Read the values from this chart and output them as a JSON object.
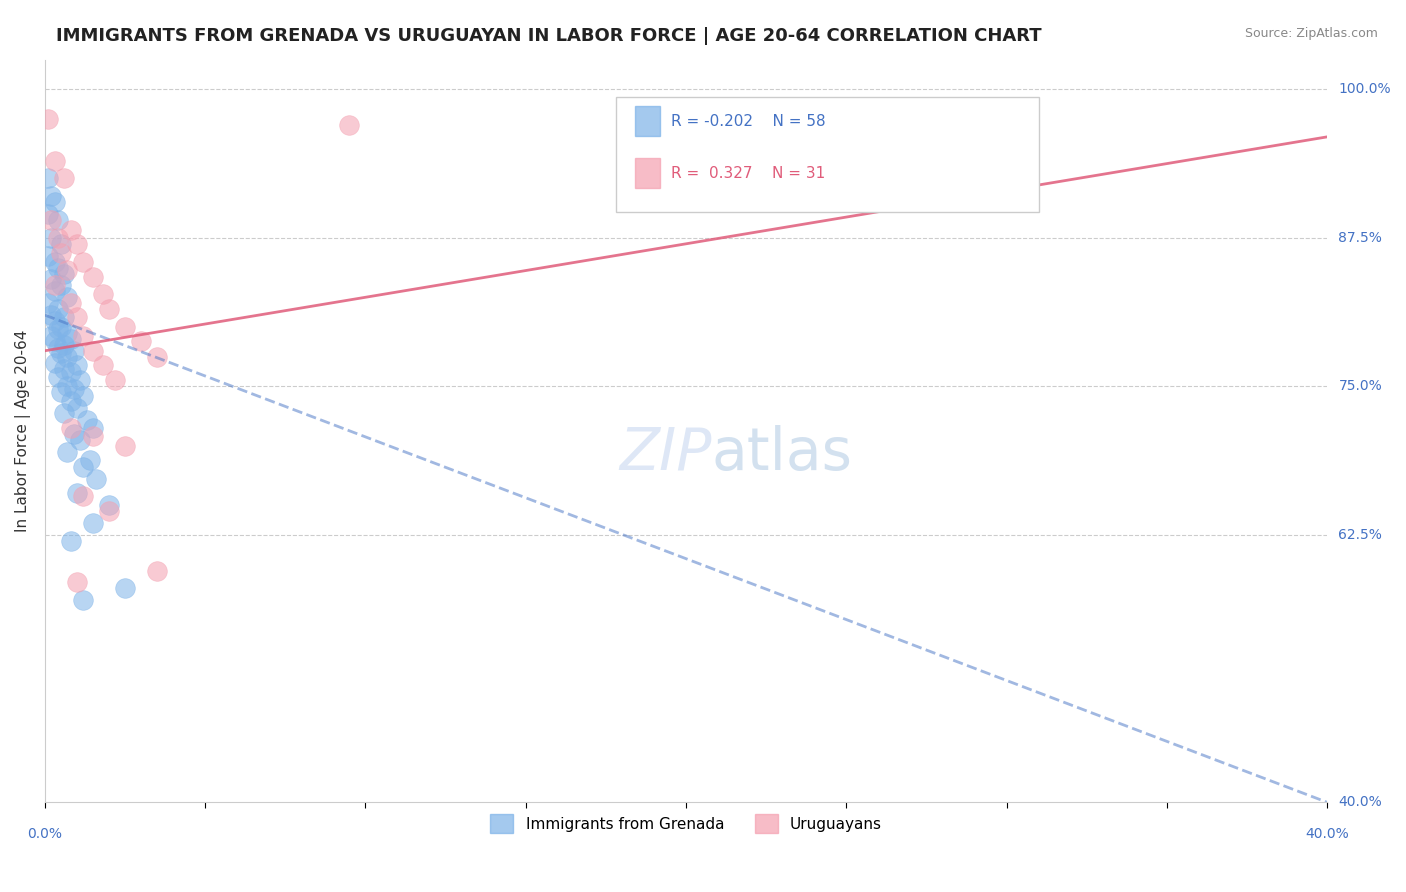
{
  "title": "IMMIGRANTS FROM GRENADA VS URUGUAYAN IN LABOR FORCE | AGE 20-64 CORRELATION CHART",
  "source": "Source: ZipAtlas.com",
  "ylabel_label": "In Labor Force | Age 20-64",
  "legend_blue_r": "R = -0.202",
  "legend_blue_n": "N = 58",
  "legend_pink_r": "R =  0.327",
  "legend_pink_n": "N = 31",
  "blue_color": "#7EB3E8",
  "pink_color": "#F4A0B0",
  "blue_line_color": "#4472C4",
  "pink_line_color": "#E05C7A",
  "blue_scatter": [
    [
      0.001,
      0.925
    ],
    [
      0.002,
      0.91
    ],
    [
      0.003,
      0.905
    ],
    [
      0.001,
      0.895
    ],
    [
      0.004,
      0.89
    ],
    [
      0.002,
      0.875
    ],
    [
      0.005,
      0.87
    ],
    [
      0.001,
      0.86
    ],
    [
      0.003,
      0.855
    ],
    [
      0.004,
      0.85
    ],
    [
      0.006,
      0.845
    ],
    [
      0.002,
      0.84
    ],
    [
      0.005,
      0.835
    ],
    [
      0.003,
      0.83
    ],
    [
      0.007,
      0.825
    ],
    [
      0.001,
      0.82
    ],
    [
      0.004,
      0.815
    ],
    [
      0.002,
      0.81
    ],
    [
      0.006,
      0.808
    ],
    [
      0.003,
      0.805
    ],
    [
      0.005,
      0.8
    ],
    [
      0.004,
      0.798
    ],
    [
      0.007,
      0.795
    ],
    [
      0.002,
      0.792
    ],
    [
      0.008,
      0.79
    ],
    [
      0.003,
      0.788
    ],
    [
      0.006,
      0.785
    ],
    [
      0.004,
      0.782
    ],
    [
      0.009,
      0.78
    ],
    [
      0.005,
      0.778
    ],
    [
      0.007,
      0.775
    ],
    [
      0.003,
      0.77
    ],
    [
      0.01,
      0.768
    ],
    [
      0.006,
      0.765
    ],
    [
      0.008,
      0.762
    ],
    [
      0.004,
      0.758
    ],
    [
      0.011,
      0.755
    ],
    [
      0.007,
      0.75
    ],
    [
      0.009,
      0.748
    ],
    [
      0.005,
      0.745
    ],
    [
      0.012,
      0.742
    ],
    [
      0.008,
      0.738
    ],
    [
      0.01,
      0.732
    ],
    [
      0.006,
      0.728
    ],
    [
      0.013,
      0.722
    ],
    [
      0.015,
      0.715
    ],
    [
      0.009,
      0.71
    ],
    [
      0.011,
      0.705
    ],
    [
      0.007,
      0.695
    ],
    [
      0.014,
      0.688
    ],
    [
      0.012,
      0.682
    ],
    [
      0.016,
      0.672
    ],
    [
      0.01,
      0.66
    ],
    [
      0.02,
      0.65
    ],
    [
      0.015,
      0.635
    ],
    [
      0.008,
      0.62
    ],
    [
      0.025,
      0.58
    ],
    [
      0.012,
      0.57
    ]
  ],
  "pink_scatter": [
    [
      0.001,
      0.975
    ],
    [
      0.003,
      0.94
    ],
    [
      0.006,
      0.925
    ],
    [
      0.002,
      0.89
    ],
    [
      0.008,
      0.882
    ],
    [
      0.004,
      0.875
    ],
    [
      0.01,
      0.87
    ],
    [
      0.005,
      0.862
    ],
    [
      0.012,
      0.855
    ],
    [
      0.007,
      0.848
    ],
    [
      0.015,
      0.842
    ],
    [
      0.003,
      0.835
    ],
    [
      0.018,
      0.828
    ],
    [
      0.008,
      0.82
    ],
    [
      0.02,
      0.815
    ],
    [
      0.01,
      0.808
    ],
    [
      0.025,
      0.8
    ],
    [
      0.012,
      0.792
    ],
    [
      0.03,
      0.788
    ],
    [
      0.015,
      0.78
    ],
    [
      0.035,
      0.775
    ],
    [
      0.018,
      0.768
    ],
    [
      0.022,
      0.755
    ],
    [
      0.008,
      0.715
    ],
    [
      0.015,
      0.708
    ],
    [
      0.025,
      0.7
    ],
    [
      0.012,
      0.658
    ],
    [
      0.02,
      0.645
    ],
    [
      0.035,
      0.595
    ],
    [
      0.095,
      0.97
    ],
    [
      0.01,
      0.585
    ]
  ],
  "x_range": [
    0.0,
    0.4
  ],
  "y_range": [
    0.4,
    1.025
  ],
  "blue_trend_x": [
    0.0,
    0.4
  ],
  "blue_trend_y": [
    0.81,
    0.4
  ],
  "pink_trend_x": [
    0.0,
    0.4
  ],
  "pink_trend_y": [
    0.78,
    0.96
  ],
  "background_color": "#FFFFFF",
  "grid_color": "#CCCCCC",
  "right_yticks": [
    [
      1.0,
      "100.0%"
    ],
    [
      0.875,
      "87.5%"
    ],
    [
      0.75,
      "75.0%"
    ],
    [
      0.625,
      "62.5%"
    ],
    [
      0.4,
      "40.0%"
    ]
  ]
}
